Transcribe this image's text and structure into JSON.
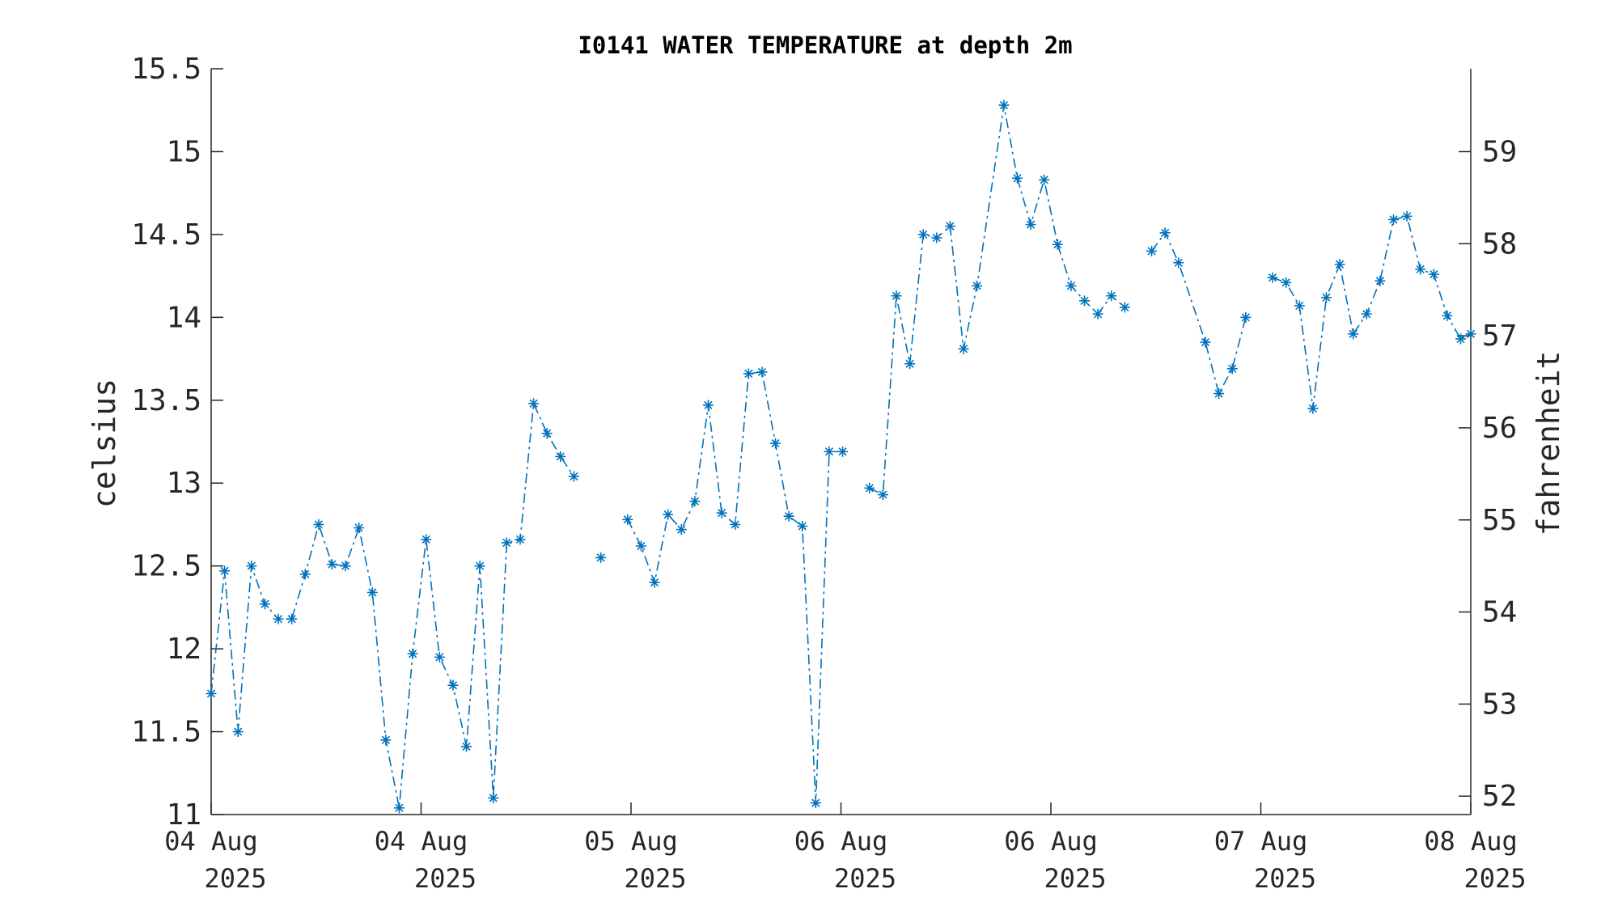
{
  "chart_data": {
    "type": "line",
    "title": "I0141 WATER TEMPERATURE at depth 2m",
    "ylabel": "celsius",
    "ylabel_right": "fahrenheit",
    "ylim": [
      11,
      15.5
    ],
    "yticks": [
      11,
      11.5,
      12,
      12.5,
      13,
      13.5,
      14,
      14.5,
      15,
      15.5
    ],
    "yticks_right": [
      52,
      53,
      54,
      55,
      56,
      57,
      58,
      59
    ],
    "xlim": [
      0,
      6
    ],
    "xticks": [
      {
        "x": 0,
        "line1": "04 Aug",
        "line2": "2025"
      },
      {
        "x": 1,
        "line1": "04 Aug",
        "line2": "2025"
      },
      {
        "x": 2,
        "line1": "05 Aug",
        "line2": "2025"
      },
      {
        "x": 3,
        "line1": "06 Aug",
        "line2": "2025"
      },
      {
        "x": 4,
        "line1": "06 Aug",
        "line2": "2025"
      },
      {
        "x": 5,
        "line1": "07 Aug",
        "line2": "2025"
      },
      {
        "x": 6,
        "line1": "08 Aug",
        "line2": "2025"
      }
    ],
    "grid": false,
    "line_color": "#0072BD",
    "line_style": "dash-dot",
    "marker": "asterisk",
    "series": [
      {
        "segments": [
          {
            "x": [
              0.0,
              0.064,
              0.128,
              0.192,
              0.256,
              0.32,
              0.384,
              0.448,
              0.512,
              0.576,
              0.64,
              0.704,
              0.768,
              0.832,
              0.896,
              0.96,
              1.024,
              1.088,
              1.152,
              1.216,
              1.28,
              1.344,
              1.408,
              1.472,
              1.536,
              1.6,
              1.664,
              1.728
            ],
            "y": [
              11.73,
              12.47,
              11.5,
              12.5,
              12.27,
              12.18,
              12.18,
              12.45,
              12.75,
              12.51,
              12.5,
              12.73,
              12.34,
              11.45,
              11.04,
              11.97,
              12.66,
              11.95,
              11.78,
              11.41,
              12.5,
              11.1,
              12.64,
              12.66,
              13.48,
              13.3,
              13.16,
              13.04
            ]
          },
          {
            "x": [
              1.856
            ],
            "y": [
              12.55
            ]
          },
          {
            "x": [
              1.984,
              2.048,
              2.112,
              2.176,
              2.24,
              2.304,
              2.368,
              2.432,
              2.496,
              2.56,
              2.624,
              2.688,
              2.752,
              2.816,
              2.88,
              2.944,
              3.008
            ],
            "y": [
              12.78,
              12.62,
              12.4,
              12.81,
              12.72,
              12.89,
              13.47,
              12.82,
              12.75,
              13.66,
              13.67,
              13.24,
              12.8,
              12.74,
              11.07,
              13.19,
              13.19
            ]
          },
          {
            "x": [
              3.136,
              3.2,
              3.264,
              3.328,
              3.392,
              3.456,
              3.52,
              3.584,
              3.648,
              3.776,
              3.84,
              3.904,
              3.968,
              4.032,
              4.096,
              4.16,
              4.224,
              4.288,
              4.352
            ],
            "y": [
              12.97,
              12.93,
              14.13,
              13.72,
              14.5,
              14.48,
              14.55,
              13.81,
              14.19,
              15.28,
              14.84,
              14.56,
              14.83,
              14.44,
              14.19,
              14.1,
              14.02,
              14.13,
              14.06
            ]
          },
          {
            "x": [
              4.48,
              4.544,
              4.608,
              4.736,
              4.8,
              4.864,
              4.928
            ],
            "y": [
              14.4,
              14.51,
              14.33,
              13.85,
              13.54,
              13.69,
              14.0
            ]
          },
          {
            "x": [
              5.056,
              5.12,
              5.184,
              5.248,
              5.312,
              5.376,
              5.44,
              5.504,
              5.568,
              5.632,
              5.696,
              5.76,
              5.824,
              5.888,
              5.952,
              6.0
            ],
            "y": [
              14.24,
              14.21,
              14.07,
              13.45,
              14.12,
              14.32,
              13.9,
              14.02,
              14.22,
              14.59,
              14.61,
              14.29,
              14.26,
              14.01,
              13.87,
              13.9
            ]
          }
        ]
      }
    ]
  }
}
